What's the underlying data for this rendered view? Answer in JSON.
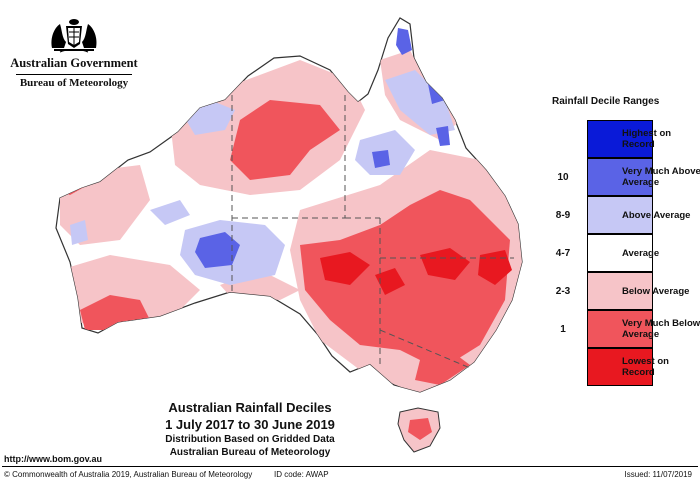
{
  "header": {
    "government": "Australian Government",
    "bureau": "Bureau of Meteorology"
  },
  "legend": {
    "title": "Rainfall Decile Ranges",
    "items": [
      {
        "code": "",
        "label": "Highest on Record",
        "color": "#0a1ad8"
      },
      {
        "code": "10",
        "label": "Very Much Above Average",
        "color": "#5a63e6"
      },
      {
        "code": "8-9",
        "label": "Above Average",
        "color": "#c6c8f5"
      },
      {
        "code": "4-7",
        "label": "Average",
        "color": "#ffffff"
      },
      {
        "code": "2-3",
        "label": "Below Average",
        "color": "#f6c4c8"
      },
      {
        "code": "1",
        "label": "Very Much Below Average",
        "color": "#f0555c"
      },
      {
        "code": "",
        "label": "Lowest on Record",
        "color": "#e81820"
      }
    ]
  },
  "title": {
    "main": "Australian Rainfall Deciles",
    "dates": "1 July 2017 to 30 June 2019",
    "line1": "Distribution Based on Gridded Data",
    "line2": "Australian Bureau of Meteorology"
  },
  "footer": {
    "url": "http://www.bom.gov.au",
    "copyright": "© Commonwealth of Australia 2019, Australian Bureau of Meteorology",
    "id": "ID code: AWAP",
    "issued": "Issued: 11/07/2019"
  },
  "colors": {
    "highest": "#0a1ad8",
    "very_much_above": "#5a63e6",
    "above": "#c6c8f5",
    "average": "#ffffff",
    "below": "#f6c4c8",
    "very_much_below": "#f0555c",
    "lowest": "#e81820",
    "outline": "#333333"
  }
}
